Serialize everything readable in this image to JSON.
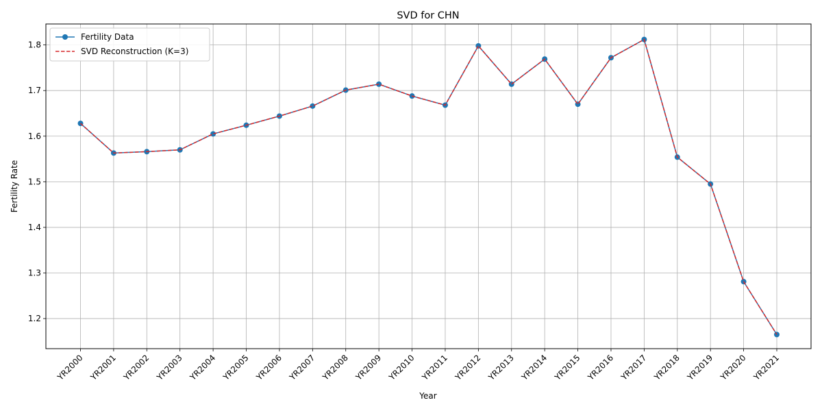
{
  "chart_data": {
    "type": "line",
    "title": "SVD for CHN",
    "xlabel": "Year",
    "ylabel": "Fertility Rate",
    "categories": [
      "YR2000",
      "YR2001",
      "YR2002",
      "YR2003",
      "YR2004",
      "YR2005",
      "YR2006",
      "YR2007",
      "YR2008",
      "YR2009",
      "YR2010",
      "YR2011",
      "YR2012",
      "YR2013",
      "YR2014",
      "YR2015",
      "YR2016",
      "YR2017",
      "YR2018",
      "YR2019",
      "YR2020",
      "YR2021"
    ],
    "yticks": [
      "1.2",
      "1.3",
      "1.4",
      "1.5",
      "1.6",
      "1.7",
      "1.8"
    ],
    "ylim": [
      1.134,
      1.846
    ],
    "grid": true,
    "legend_position": "top-left",
    "series": [
      {
        "name": "Fertility Data",
        "color": "#1f77b4",
        "style": "solid-line-circle-markers",
        "values": [
          1.628,
          1.563,
          1.566,
          1.57,
          1.605,
          1.624,
          1.644,
          1.666,
          1.701,
          1.714,
          1.688,
          1.668,
          1.798,
          1.714,
          1.769,
          1.67,
          1.772,
          1.812,
          1.554,
          1.495,
          1.281,
          1.165
        ]
      },
      {
        "name": "SVD Reconstruction (K=3)",
        "color": "#d62728",
        "style": "dashed-line",
        "values": [
          1.628,
          1.563,
          1.566,
          1.57,
          1.605,
          1.624,
          1.644,
          1.666,
          1.701,
          1.714,
          1.688,
          1.668,
          1.798,
          1.714,
          1.769,
          1.67,
          1.772,
          1.812,
          1.554,
          1.495,
          1.281,
          1.165
        ]
      }
    ]
  }
}
